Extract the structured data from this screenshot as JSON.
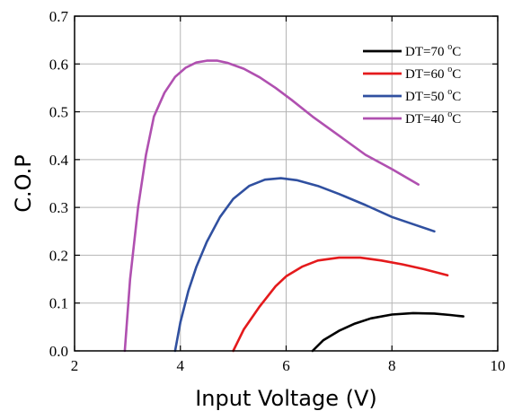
{
  "chart_data": {
    "type": "line",
    "xlabel": "Input Voltage (V)",
    "ylabel": "C.O.P",
    "xlim": [
      2,
      10
    ],
    "ylim": [
      0.0,
      0.7
    ],
    "x_ticks": [
      2,
      4,
      6,
      8,
      10
    ],
    "y_ticks": [
      0.0,
      0.1,
      0.2,
      0.3,
      0.4,
      0.5,
      0.6,
      0.7
    ],
    "x_tick_labels": [
      "2",
      "4",
      "6",
      "8",
      "10"
    ],
    "y_tick_labels": [
      "0.0",
      "0.1",
      "0.2",
      "0.3",
      "0.4",
      "0.5",
      "0.6",
      "0.7"
    ],
    "grid": true,
    "legend_position": "top-right",
    "series": [
      {
        "name": "DT=70 °C",
        "color": "#000000",
        "x": [
          6.5,
          6.7,
          7.0,
          7.3,
          7.6,
          8.0,
          8.4,
          8.8,
          9.1,
          9.35
        ],
        "y": [
          0.0,
          0.022,
          0.042,
          0.057,
          0.068,
          0.076,
          0.079,
          0.078,
          0.075,
          0.072
        ]
      },
      {
        "name": "DT=60 °C",
        "color": "#e41a1c",
        "x": [
          5.0,
          5.2,
          5.5,
          5.8,
          6.0,
          6.3,
          6.6,
          7.0,
          7.4,
          7.8,
          8.2,
          8.6,
          9.05
        ],
        "y": [
          0.0,
          0.045,
          0.093,
          0.135,
          0.156,
          0.176,
          0.189,
          0.195,
          0.195,
          0.189,
          0.181,
          0.171,
          0.158
        ]
      },
      {
        "name": "DT=50 °C",
        "color": "#3050a0",
        "x": [
          3.9,
          4.0,
          4.15,
          4.3,
          4.5,
          4.75,
          5.0,
          5.3,
          5.6,
          5.9,
          6.2,
          6.6,
          7.0,
          7.5,
          8.0,
          8.4,
          8.8
        ],
        "y": [
          0.0,
          0.06,
          0.125,
          0.175,
          0.228,
          0.28,
          0.318,
          0.345,
          0.358,
          0.361,
          0.357,
          0.345,
          0.328,
          0.305,
          0.28,
          0.265,
          0.25
        ]
      },
      {
        "name": "DT=40 °C",
        "color": "#b050b0",
        "x": [
          2.95,
          3.05,
          3.2,
          3.35,
          3.5,
          3.7,
          3.9,
          4.1,
          4.3,
          4.5,
          4.7,
          4.9,
          5.2,
          5.5,
          5.8,
          6.1,
          6.5,
          7.0,
          7.5,
          8.0,
          8.5
        ],
        "y": [
          0.0,
          0.15,
          0.3,
          0.41,
          0.49,
          0.54,
          0.573,
          0.592,
          0.603,
          0.607,
          0.607,
          0.602,
          0.59,
          0.572,
          0.55,
          0.525,
          0.49,
          0.45,
          0.41,
          0.38,
          0.348
        ]
      }
    ]
  }
}
